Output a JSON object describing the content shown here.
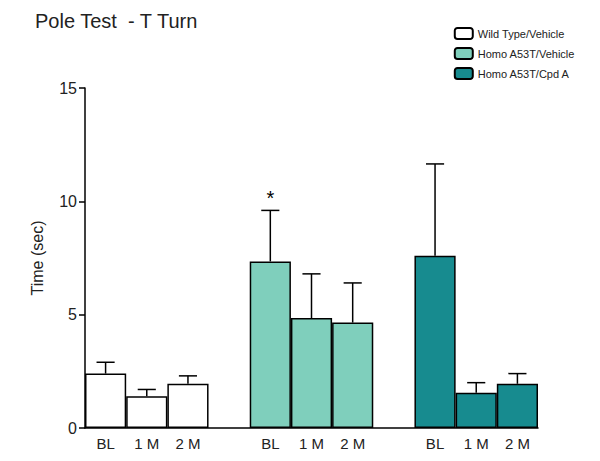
{
  "chart_data": {
    "type": "bar",
    "title": "Pole Test  - T Turn",
    "y_label": "Time (sec)",
    "categories": [
      "BL",
      "1 M",
      "2 M",
      null,
      "BL",
      "1 M",
      "2 M",
      null,
      "BL",
      "1 M",
      "2 M"
    ],
    "series": [
      {
        "name": "Wild Type/Vehicle",
        "color": "#ffffff",
        "values": [
          2.4,
          1.4,
          1.95,
          null,
          null,
          null,
          null,
          null,
          null,
          null,
          null
        ],
        "errors": [
          0.5,
          0.3,
          0.35,
          null,
          null,
          null,
          null,
          null,
          null,
          null,
          null
        ]
      },
      {
        "name": "Homo A53T/Vehicle",
        "color": "#7fcfbc",
        "values": [
          null,
          null,
          null,
          null,
          7.35,
          4.85,
          4.65,
          null,
          null,
          null,
          null
        ],
        "errors": [
          null,
          null,
          null,
          null,
          2.25,
          1.95,
          1.75,
          null,
          null,
          null,
          null
        ]
      },
      {
        "name": "Homo A53T/Cpd A",
        "color": "#178b8f",
        "values": [
          null,
          null,
          null,
          null,
          null,
          null,
          null,
          null,
          7.6,
          1.55,
          1.95
        ],
        "errors": [
          null,
          null,
          null,
          null,
          null,
          null,
          null,
          null,
          4.05,
          0.45,
          0.45
        ]
      }
    ],
    "ylim": [
      0,
      15
    ],
    "yticks": [
      0,
      5,
      10,
      15
    ],
    "grid": false,
    "legend": "top-right",
    "annotations": [
      {
        "text": "*",
        "series": "Homo A53T/Vehicle",
        "x_index": 4
      }
    ]
  }
}
